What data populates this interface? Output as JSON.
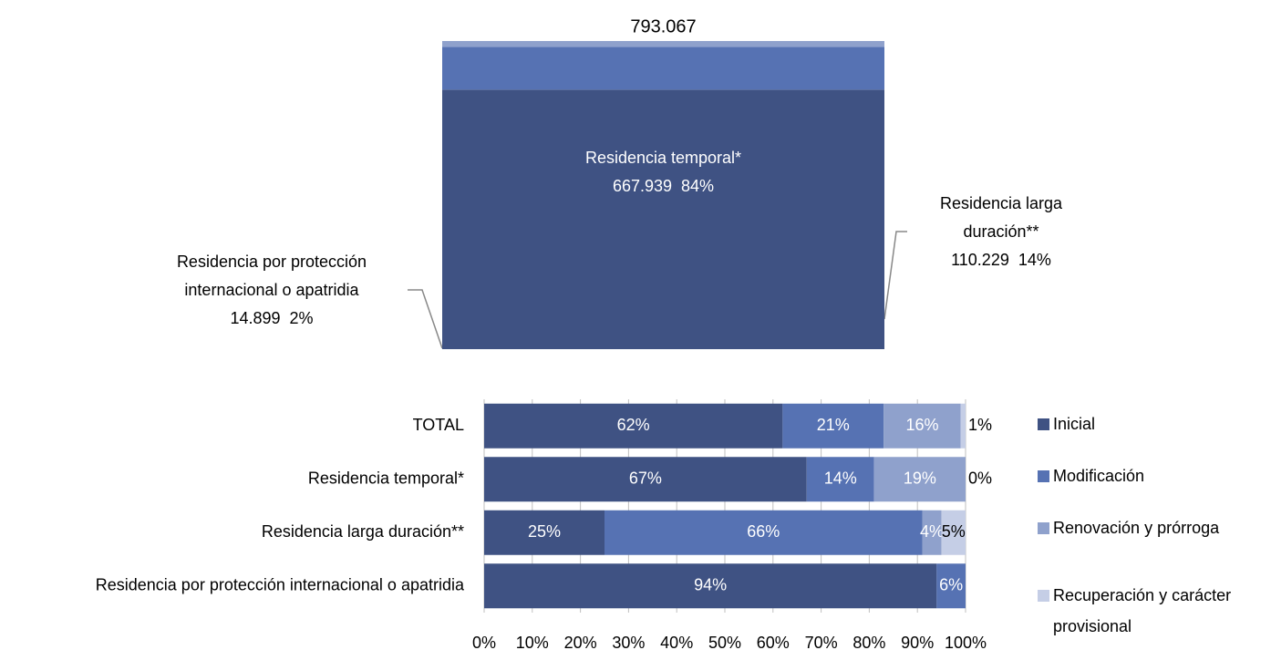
{
  "chart_data": [
    {
      "type": "stacked_column",
      "total": 793067,
      "total_label": "793.067",
      "series": [
        {
          "name": "Residencia temporal*",
          "color": "#3f5283",
          "values": [
            667939
          ],
          "value_labels": [
            "667.939"
          ],
          "shares": [
            84
          ],
          "share_labels": [
            "84%"
          ]
        },
        {
          "name": "Residencia larga duración**",
          "color": "#5672b3",
          "values": [
            110229
          ],
          "value_labels": [
            "110.229"
          ],
          "shares": [
            14
          ],
          "share_labels": [
            "14%"
          ]
        },
        {
          "name": "Residencia por protección internacional o apatridia",
          "color": "#8fa1cc",
          "values": [
            14899
          ],
          "value_labels": [
            "14.899"
          ],
          "shares": [
            2
          ],
          "share_labels": [
            "2%"
          ]
        }
      ]
    },
    {
      "type": "stacked_barh_percent",
      "categories": [
        "TOTAL",
        "Residencia temporal*",
        "Residencia larga duración**",
        "Residencia por protección internacional o apatridia"
      ],
      "series": [
        {
          "name": "Inicial",
          "color": "#3f5283",
          "values": [
            62,
            67,
            25,
            94
          ],
          "value_labels": [
            "62%",
            "67%",
            "25%",
            "94%"
          ]
        },
        {
          "name": "Modificación",
          "color": "#5672b3",
          "values": [
            21,
            14,
            66,
            6
          ],
          "value_labels": [
            "21%",
            "14%",
            "66%",
            "6%"
          ]
        },
        {
          "name": "Renovación y prórroga",
          "color": "#8fa1cc",
          "values": [
            16,
            19,
            4,
            null
          ],
          "value_labels": [
            "16%",
            "19%",
            "4%",
            null
          ]
        },
        {
          "name": "Recuperación y carácter provisional",
          "color": "#c5cee6",
          "values": [
            1,
            0,
            5,
            null
          ],
          "value_labels": [
            "1%",
            "0%",
            "5%",
            null
          ]
        }
      ],
      "xlim": [
        0,
        100
      ],
      "xticks": [
        {
          "value": 0,
          "label": "0%"
        },
        {
          "value": 10,
          "label": "10%"
        },
        {
          "value": 20,
          "label": "20%"
        },
        {
          "value": 30,
          "label": "30%"
        },
        {
          "value": 40,
          "label": "40%"
        },
        {
          "value": 50,
          "label": "50%"
        },
        {
          "value": 60,
          "label": "60%"
        },
        {
          "value": 70,
          "label": "70%"
        },
        {
          "value": 80,
          "label": "80%"
        },
        {
          "value": 90,
          "label": "90%"
        },
        {
          "value": 100,
          "label": "100%"
        }
      ],
      "grid": true,
      "legend": "right"
    }
  ]
}
